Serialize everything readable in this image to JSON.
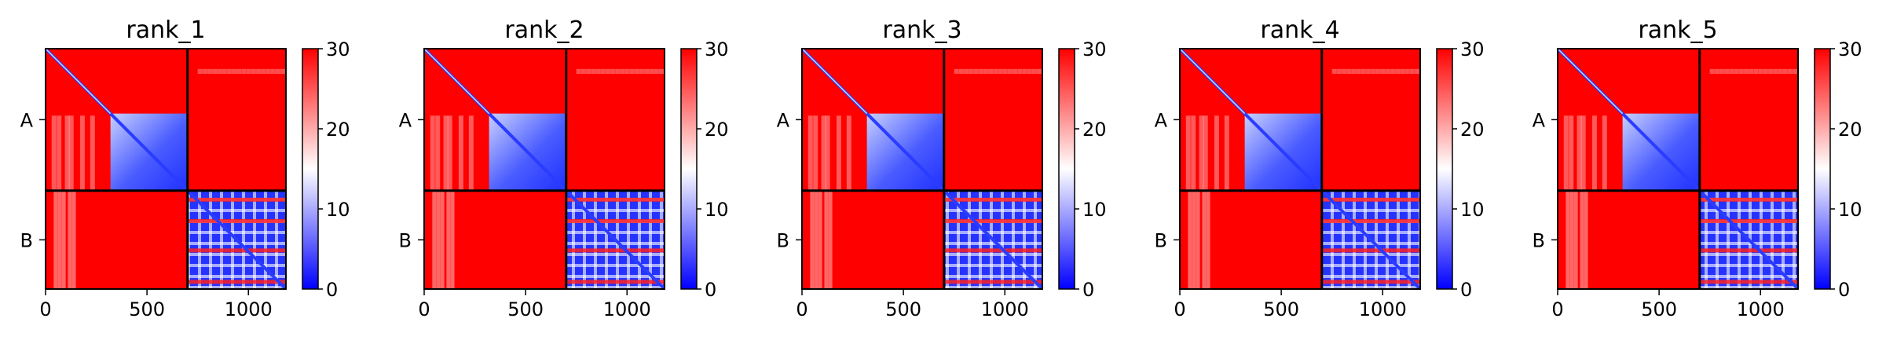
{
  "chart_data": {
    "type": "heatmap",
    "colormap": [
      "#0000ff",
      "#ffffff",
      "#ff0000"
    ],
    "chains": [
      "A",
      "B"
    ],
    "boundary": 700,
    "matrix_size": 1185,
    "xticks": [
      0,
      500,
      1000
    ],
    "xtick_labels": [
      "0",
      "500",
      "1000"
    ],
    "colorbar": {
      "range": [
        0,
        30
      ],
      "ticks": [
        0,
        10,
        20,
        30
      ],
      "tick_labels": [
        "0",
        "10",
        "20",
        "30"
      ]
    },
    "panels": [
      {
        "title": "rank_1"
      },
      {
        "title": "rank_2"
      },
      {
        "title": "rank_3"
      },
      {
        "title": "rank_4"
      },
      {
        "title": "rank_5"
      }
    ]
  }
}
